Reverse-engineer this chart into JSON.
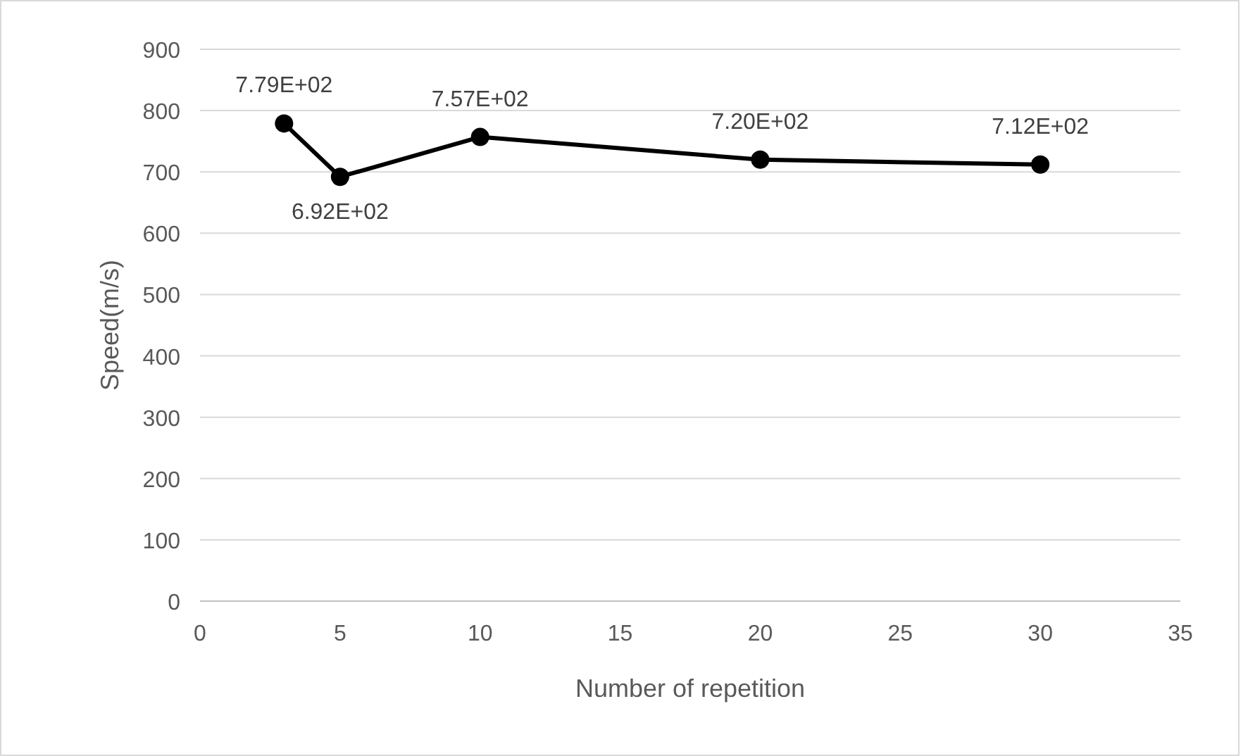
{
  "chart_data": {
    "type": "line",
    "xlabel": "Number of repetition",
    "ylabel": "Speed(m/s)",
    "x": [
      3,
      5,
      10,
      20,
      30
    ],
    "series": [
      {
        "color": "#000000",
        "values": [
          779,
          692,
          757,
          720,
          712
        ],
        "value_labels": [
          "7.79E+02",
          "6.92E+02",
          "7.57E+02",
          "7.20E+02",
          "7.12E+02"
        ]
      }
    ],
    "xlim": [
      0,
      35
    ],
    "xticks": [
      0,
      5,
      10,
      15,
      20,
      25,
      30,
      35
    ],
    "ylim": [
      0,
      900
    ],
    "yticks": [
      0,
      100,
      200,
      300,
      400,
      500,
      600,
      700,
      800,
      900
    ],
    "grid": "y",
    "marker": "circle",
    "line_style": "solid"
  }
}
